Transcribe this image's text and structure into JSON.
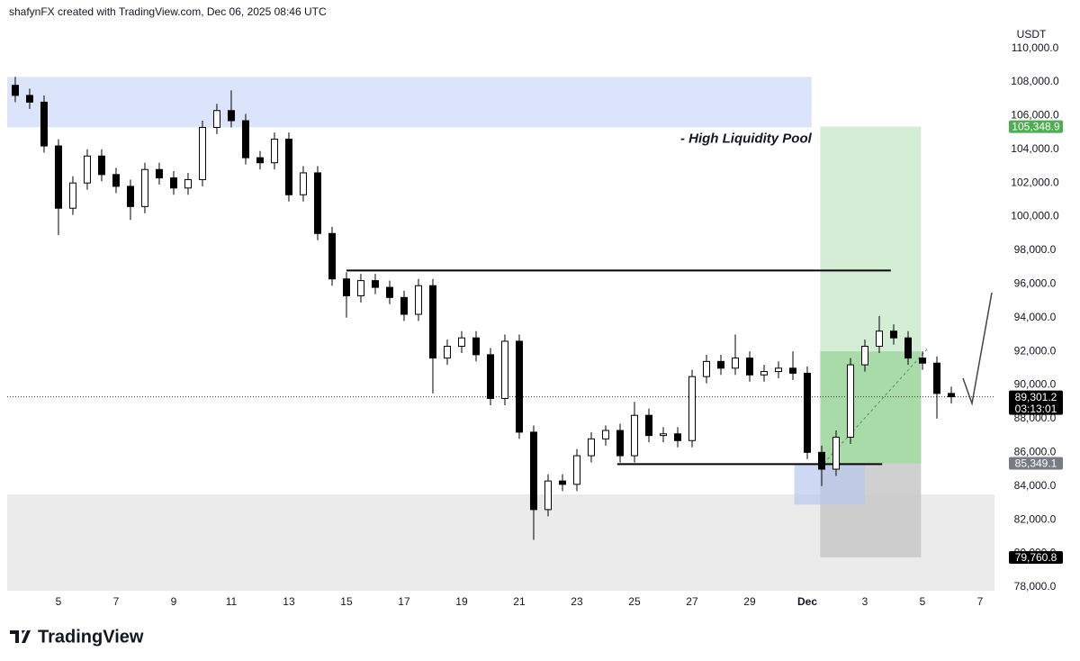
{
  "header": "shafynFX created with TradingView.com, Dec 06, 2025 08:46 UTC",
  "brand": "TradingView",
  "chart_data": {
    "type": "candlestick",
    "currency": "USDT",
    "xlim": [
      3.22,
      37.5
    ],
    "ylim": [
      77780,
      111530
    ],
    "grid": false,
    "xticks": [
      5,
      7,
      9,
      11,
      13,
      15,
      17,
      19,
      21,
      23,
      25,
      27,
      29,
      {
        "value": 31,
        "label": "Dec"
      },
      {
        "value": 33,
        "label": "3"
      },
      {
        "value": 35,
        "label": "5"
      },
      {
        "value": 37,
        "label": "7"
      }
    ],
    "yticks": [
      {
        "value": 78000,
        "label": "78,000.0"
      },
      {
        "value": 80000,
        "label": "80,000.0"
      },
      {
        "value": 82000,
        "label": "82,000.0"
      },
      {
        "value": 84000,
        "label": "84,000.0"
      },
      {
        "value": 86000,
        "label": "86,000.0"
      },
      {
        "value": 88000,
        "label": "88,000.0"
      },
      {
        "value": 90000,
        "label": "90,000.0"
      },
      {
        "value": 92000,
        "label": "92,000.0"
      },
      {
        "value": 94000,
        "label": "94,000.0"
      },
      {
        "value": 96000,
        "label": "96,000.0"
      },
      {
        "value": 98000,
        "label": "98,000.0"
      },
      {
        "value": 100000,
        "label": "100,000.0"
      },
      {
        "value": 102000,
        "label": "102,000.0"
      },
      {
        "value": 104000,
        "label": "104,000.0"
      },
      {
        "value": 106000,
        "label": "106,000.0"
      },
      {
        "value": 108000,
        "label": "108,000.0"
      },
      {
        "value": 110000,
        "label": "110,000.0"
      }
    ],
    "up_color": "#ffffff",
    "down_color": "#000000",
    "candles": {
      "x": [
        3.5,
        4,
        4.5,
        5,
        5.5,
        6,
        6.5,
        7,
        7.5,
        8,
        8.5,
        9,
        9.5,
        10,
        10.5,
        11,
        11.5,
        12,
        12.5,
        13,
        13.5,
        14,
        14.5,
        15,
        15.5,
        16,
        16.5,
        17,
        17.5,
        18,
        18.5,
        19,
        19.5,
        20,
        20.5,
        21,
        21.5,
        22,
        22.5,
        23,
        23.5,
        24,
        24.5,
        25,
        25.5,
        26,
        26.5,
        27,
        27.5,
        28,
        28.5,
        29,
        29.5,
        30,
        30.5,
        31,
        31.5,
        32,
        32.5,
        33,
        33.5,
        34,
        34.5,
        35,
        35.5,
        36
      ],
      "open": [
        107800,
        107200,
        106800,
        104200,
        100500,
        102000,
        103600,
        102500,
        101800,
        100600,
        102800,
        102300,
        101700,
        102200,
        105300,
        106300,
        105700,
        103500,
        103200,
        104600,
        101300,
        102600,
        99000,
        96300,
        95300,
        96200,
        95800,
        95200,
        94200,
        95900,
        91600,
        92300,
        92800,
        91800,
        89200,
        92600,
        87200,
        82600,
        84300,
        84100,
        85800,
        86800,
        87300,
        85800,
        88200,
        87000,
        87100,
        86700,
        90500,
        91400,
        91000,
        91600,
        90600,
        90800,
        91000,
        90700,
        86000,
        85000,
        86900,
        91200,
        92300,
        93200,
        92800,
        91600,
        91300,
        89500
      ],
      "high": [
        108300,
        107600,
        107200,
        104600,
        102400,
        104000,
        104000,
        102900,
        102200,
        103200,
        103200,
        102700,
        102600,
        105700,
        106700,
        107500,
        106100,
        103900,
        105000,
        105000,
        103000,
        103000,
        99400,
        96700,
        96600,
        96600,
        96200,
        95600,
        96300,
        96300,
        92700,
        93200,
        93200,
        92200,
        93000,
        93000,
        87600,
        84700,
        84700,
        86200,
        87200,
        87600,
        87700,
        89000,
        88600,
        87500,
        87500,
        90900,
        91800,
        91800,
        93000,
        92000,
        91200,
        91400,
        92000,
        91100,
        86400,
        87300,
        91600,
        92700,
        94100,
        93600,
        93200,
        92000,
        91700,
        89900
      ],
      "low": [
        106800,
        106400,
        103800,
        98900,
        100100,
        101600,
        102100,
        101400,
        99800,
        100200,
        101900,
        101300,
        101300,
        101800,
        104900,
        105300,
        103100,
        102800,
        102800,
        100900,
        100900,
        98600,
        95900,
        94000,
        94900,
        95400,
        94800,
        93800,
        93800,
        89500,
        91200,
        91900,
        91400,
        88800,
        88800,
        86800,
        80800,
        82200,
        83700,
        83700,
        85400,
        86400,
        85400,
        85400,
        86600,
        86600,
        86300,
        86300,
        90100,
        90600,
        90600,
        90200,
        90200,
        90400,
        90300,
        85600,
        84000,
        84600,
        86500,
        90800,
        91900,
        92400,
        91200,
        90900,
        88000,
        88900
      ],
      "close": [
        107200,
        106800,
        104200,
        100500,
        102000,
        103600,
        102500,
        101800,
        100600,
        102800,
        102300,
        101700,
        102200,
        105300,
        106300,
        105700,
        103500,
        103200,
        104600,
        101300,
        102600,
        99000,
        96300,
        95300,
        96200,
        95800,
        95200,
        94200,
        95900,
        91600,
        92300,
        92800,
        91800,
        89200,
        92600,
        87200,
        82600,
        84300,
        84100,
        85800,
        86800,
        87300,
        85800,
        88200,
        87000,
        87100,
        86700,
        90500,
        91400,
        91000,
        91600,
        90600,
        90800,
        91000,
        90700,
        86000,
        85000,
        86900,
        91200,
        92300,
        93200,
        92800,
        91600,
        91300,
        89500,
        89301.2
      ]
    },
    "liquidity_zone": {
      "x": [
        3.22,
        31.15
      ],
      "y": [
        105300,
        108300
      ],
      "color": "#dbe4fb",
      "label": "- High Liquidity Pool"
    },
    "demand_zone": {
      "y": [
        77780,
        83500
      ],
      "color": "#ebebeb"
    },
    "entry_zone": {
      "x": [
        30.55,
        33.0
      ],
      "y": [
        82900,
        85349.1
      ],
      "color": "#b8c9ee"
    },
    "levels": [
      {
        "x": [
          15.0,
          33.9
        ],
        "y": 96800
      },
      {
        "x": [
          24.4,
          33.6
        ],
        "y": 85300
      }
    ],
    "position": {
      "x": [
        31.45,
        34.95
      ],
      "target": {
        "value": 105348.9,
        "label": "105,348.9"
      },
      "entry": {
        "value": 85349.1,
        "label": "85,349.1"
      },
      "stop": {
        "value": 79760.8,
        "label": "79,760.8"
      },
      "reached": 92000,
      "profit_color": "#d4edd5",
      "reached_color": "#a9dba8",
      "loss_color": "#c8c8c8"
    },
    "last_price": {
      "value": 89301.2,
      "label": "89,301.2"
    },
    "countdown": "03:13:01"
  }
}
